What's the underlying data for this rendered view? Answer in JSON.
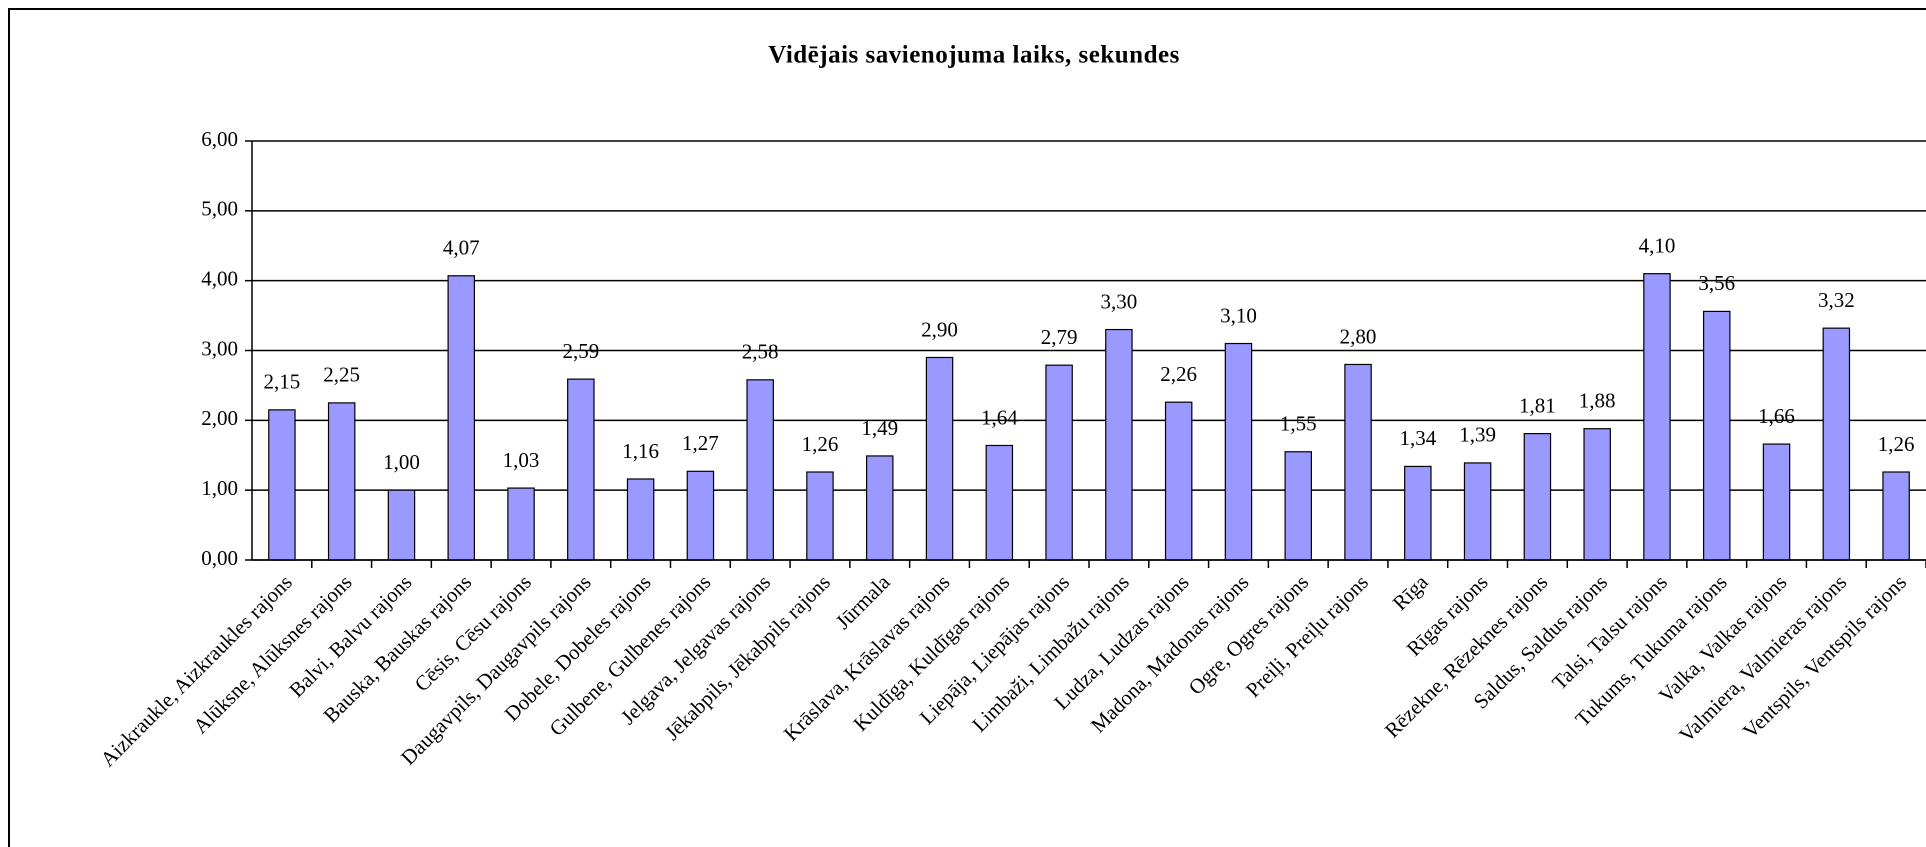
{
  "chart_data": {
    "type": "bar",
    "title": "Vidējais savienojuma laiks, sekundes",
    "categories": [
      "Aizkraukle, Aizkraukles rajons",
      "Alūksne, Alūksnes rajons",
      "Balvi, Balvu rajons",
      "Bauska, Bauskas rajons",
      "Cēsis, Cēsu rajons",
      "Daugavpils, Daugavpils rajons",
      "Dobele, Dobeles rajons",
      "Gulbene, Gulbenes rajons",
      "Jelgava, Jelgavas rajons",
      "Jēkabpils, Jēkabpils rajons",
      "Jūrmala",
      "Krāslava, Krāslavas rajons",
      "Kuldīga, Kuldīgas rajons",
      "Liepāja, Liepājas rajons",
      "Limbaži, Limbažu rajons",
      "Ludza, Ludzas rajons",
      "Madona, Madonas rajons",
      "Ogre, Ogres rajons",
      "Preiļi, Preiļu rajons",
      "Rīga",
      "Rīgas rajons",
      "Rēzekne, Rēzeknes rajons",
      "Saldus, Saldus rajons",
      "Talsi, Talsu rajons",
      "Tukums, Tukuma rajons",
      "Valka, Valkas rajons",
      "Valmiera, Valmieras rajons",
      "Ventspils, Ventspils rajons"
    ],
    "values": [
      2.15,
      2.25,
      1.0,
      4.07,
      1.03,
      2.59,
      1.16,
      1.27,
      2.58,
      1.26,
      1.49,
      2.9,
      1.64,
      2.79,
      3.3,
      2.26,
      3.1,
      1.55,
      2.8,
      1.34,
      1.39,
      1.81,
      1.88,
      4.1,
      3.56,
      1.66,
      3.32,
      1.26
    ],
    "value_labels": [
      "2,15",
      "2,25",
      "1,00",
      "4,07",
      "1,03",
      "2,59",
      "1,16",
      "1,27",
      "2,58",
      "1,26",
      "1,49",
      "2,90",
      "1,64",
      "2,79",
      "3,30",
      "2,26",
      "3,10",
      "1,55",
      "2,80",
      "1,34",
      "1,39",
      "1,81",
      "1,88",
      "4,10",
      "3,56",
      "1,66",
      "3,32",
      "1,26"
    ],
    "color": "#9999ff",
    "ylim": [
      0,
      6
    ],
    "yticks": [
      {
        "value": 0,
        "label": "0,00"
      },
      {
        "value": 1,
        "label": "1,00"
      },
      {
        "value": 2,
        "label": "2,00"
      },
      {
        "value": 3,
        "label": "3,00"
      },
      {
        "value": 4,
        "label": "4,00"
      },
      {
        "value": 5,
        "label": "5,00"
      },
      {
        "value": 6,
        "label": "6,00"
      }
    ],
    "grid": true
  }
}
